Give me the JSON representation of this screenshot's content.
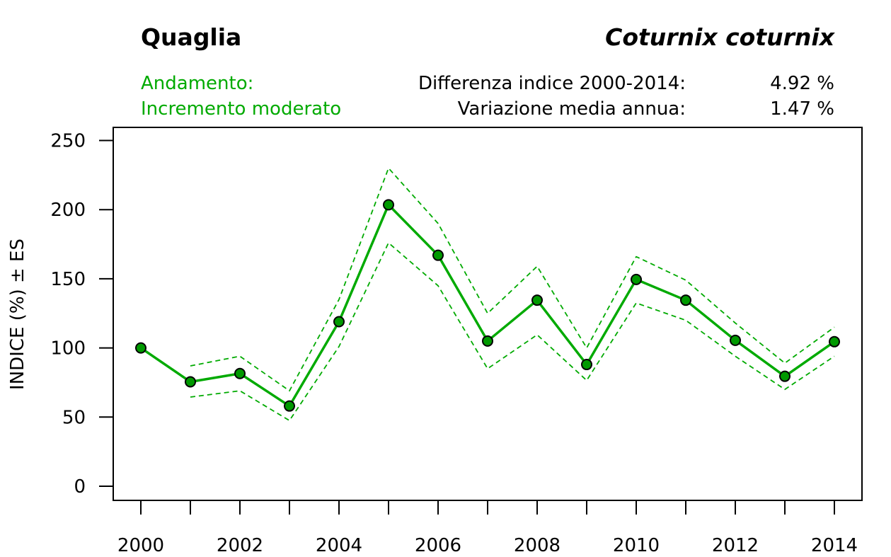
{
  "header": {
    "common_name": "Quaglia",
    "latin_name": "Coturnix coturnix",
    "trend_label": "Andamento:",
    "trend_value": "Incremento moderato",
    "diff_label": "Differenza indice 2000-2014:",
    "diff_value": "4.92 %",
    "annual_label": "Variazione media annua:",
    "annual_value": "1.47 %"
  },
  "colors": {
    "trend": "#00aa00",
    "marker_fill": "#009900",
    "axis": "#000000"
  },
  "chart_data": {
    "type": "line",
    "title": "Quaglia",
    "xlabel": "",
    "ylabel": "INDICE (%) ± ES",
    "xlim": [
      2000,
      2014
    ],
    "ylim": [
      -10,
      260
    ],
    "x": [
      2000,
      2001,
      2002,
      2003,
      2004,
      2005,
      2006,
      2007,
      2008,
      2009,
      2010,
      2011,
      2012,
      2013,
      2014
    ],
    "x_tick_labels": [
      "2000",
      "2002",
      "2004",
      "2006",
      "2008",
      "2010",
      "2012",
      "2014"
    ],
    "y_ticks": [
      0,
      50,
      100,
      150,
      200,
      250
    ],
    "series": [
      {
        "name": "Indice",
        "style": "solid-with-markers",
        "values": [
          100,
          75.5,
          81.5,
          58,
          119,
          203.5,
          167,
          105,
          134.5,
          88,
          149.5,
          134.5,
          105.5,
          79.5,
          104.5
        ]
      },
      {
        "name": "Indice + ES",
        "style": "dashed",
        "values": [
          null,
          87,
          94,
          69,
          135,
          230,
          190,
          125,
          159,
          100,
          166,
          149,
          118,
          89,
          115
        ]
      },
      {
        "name": "Indice - ES",
        "style": "dashed",
        "values": [
          null,
          64.5,
          69,
          47.5,
          101,
          176,
          145,
          85,
          109.5,
          76.5,
          132.5,
          120,
          94,
          70,
          94
        ]
      }
    ]
  }
}
